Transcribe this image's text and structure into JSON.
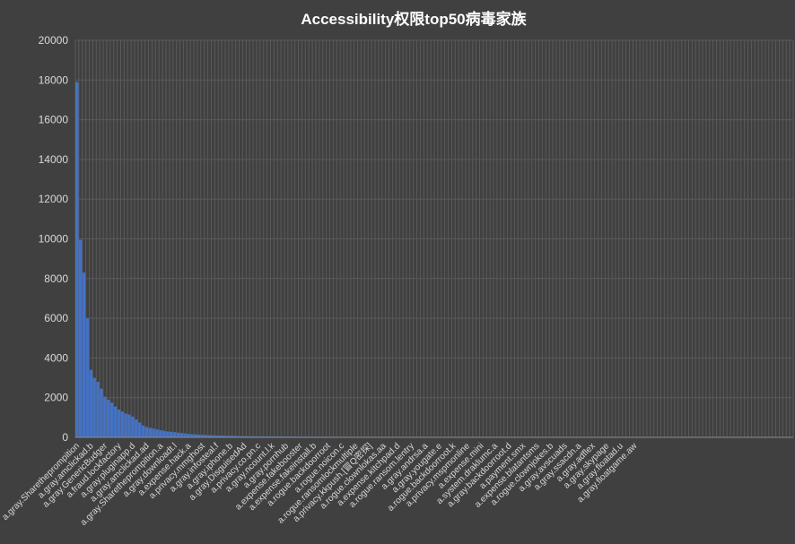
{
  "chart_data": {
    "type": "bar",
    "title": "Accessibility权限top50病毒家族",
    "xlabel": "",
    "ylabel": "",
    "ylim": [
      0,
      20000
    ],
    "yticks": [
      0,
      2000,
      4000,
      6000,
      8000,
      10000,
      12000,
      14000,
      16000,
      18000,
      20000
    ],
    "grid": true,
    "legend": "none",
    "bar_color": "#4472c4",
    "values": [
      17900,
      9950,
      8300,
      6000,
      3400,
      3000,
      2800,
      2450,
      2050,
      1900,
      1750,
      1550,
      1400,
      1300,
      1200,
      1150,
      1050,
      900,
      750,
      600,
      520,
      480,
      440,
      400,
      360,
      330,
      300,
      280,
      260,
      240,
      220,
      200,
      180,
      160,
      150,
      140,
      130,
      120,
      110,
      100,
      95,
      90,
      85,
      80,
      75,
      70,
      65,
      60,
      58,
      56,
      54,
      52,
      50,
      48,
      46,
      45,
      44,
      43,
      42,
      41,
      40,
      39,
      38,
      37,
      36,
      35,
      34,
      33,
      32,
      31,
      30,
      30,
      29,
      29,
      28,
      28,
      27,
      27,
      26,
      26,
      25,
      25,
      25,
      24,
      24,
      24,
      23,
      23,
      23,
      22,
      22,
      22,
      21,
      21,
      21,
      20,
      20,
      20,
      20,
      20,
      19,
      19,
      19,
      19,
      19,
      18,
      18,
      18,
      18,
      18,
      17,
      17,
      17,
      17,
      17,
      16,
      16,
      16,
      16,
      16,
      15,
      15,
      15,
      15,
      15,
      15,
      14,
      14,
      14,
      14,
      14,
      14,
      13,
      13,
      13,
      13,
      13,
      13,
      12,
      12,
      12,
      12,
      12,
      12,
      12,
      11,
      11,
      11,
      11,
      11,
      11,
      11,
      10,
      10,
      10,
      10,
      10,
      10,
      10,
      10,
      9,
      9,
      9,
      9,
      9,
      9,
      9,
      9,
      8,
      8,
      8,
      8,
      8,
      8,
      8,
      8,
      8,
      7,
      7,
      7,
      7,
      7,
      7,
      7,
      7,
      7,
      6,
      6,
      6,
      6,
      6,
      6,
      6,
      6,
      6,
      6,
      5,
      5,
      5,
      5,
      5,
      5,
      5,
      5,
      5,
      5
    ],
    "tick_labels": [
      {
        "i": 0,
        "label": "a.gray.Sharetheprompition"
      },
      {
        "i": 4,
        "label": "a.gray.amclickad.b"
      },
      {
        "i": 8,
        "label": "a.gray.GenericBudger"
      },
      {
        "i": 12,
        "label": "a.fraud.lockfactory"
      },
      {
        "i": 16,
        "label": "a.gray.pluginapp.d"
      },
      {
        "i": 20,
        "label": "a.gray.amclickad.ad"
      },
      {
        "i": 24,
        "label": "a.gray.Sharetheprompition.a"
      },
      {
        "i": 28,
        "label": "a.gray.downloadt.l"
      },
      {
        "i": 32,
        "label": "a.expense.hack.a"
      },
      {
        "i": 36,
        "label": "a.privacy.mmghost"
      },
      {
        "i": 40,
        "label": "a.gray.infosteal.f"
      },
      {
        "i": 44,
        "label": "a.gray.iphone.b"
      },
      {
        "i": 48,
        "label": "a.gray.DisguisedAd"
      },
      {
        "i": 52,
        "label": "a.privacy.co.pn.c"
      },
      {
        "i": 56,
        "label": "a.gray.ncount.l.k"
      },
      {
        "i": 60,
        "label": "a.gray.pornhub"
      },
      {
        "i": 64,
        "label": "a.expense.fakebooster"
      },
      {
        "i": 68,
        "label": "a.expense.fakeinstall.b"
      },
      {
        "i": 72,
        "label": "a.rogue.backdoorroot"
      },
      {
        "i": 76,
        "label": "a.rogue.noicon.c"
      },
      {
        "i": 80,
        "label": "a.rogue.ransomlockmultiple"
      },
      {
        "i": 84,
        "label": "a.privacy.kkpush.[冒Q密探]"
      },
      {
        "i": 88,
        "label": "a.rogue.clownlokas.aa"
      },
      {
        "i": 92,
        "label": "a.expense.kitchpad.d"
      },
      {
        "i": 96,
        "label": "a.rogue.ransom.lentry"
      },
      {
        "i": 100,
        "label": "a.gray.andrsa.a"
      },
      {
        "i": 104,
        "label": "a.gray.yougate.e"
      },
      {
        "i": 108,
        "label": "a.rogue.backdoorroot.k"
      },
      {
        "i": 112,
        "label": "a.privacy.mspmonline"
      },
      {
        "i": 116,
        "label": "a.expense.mini"
      },
      {
        "i": 120,
        "label": "a.system.draklumc.a"
      },
      {
        "i": 124,
        "label": "a.gray.backdoorroot.d"
      },
      {
        "i": 128,
        "label": "a.payment.smx"
      },
      {
        "i": 132,
        "label": "a.expense.blatantsms"
      },
      {
        "i": 136,
        "label": "a.rogue.clownjokes.b"
      },
      {
        "i": 140,
        "label": "a.gray.avscuads"
      },
      {
        "i": 144,
        "label": "a.gray.ssacdn.a"
      },
      {
        "i": 148,
        "label": "a.gray.adflex"
      },
      {
        "i": 152,
        "label": "a.gray.skypage"
      },
      {
        "i": 156,
        "label": "a.gray.floatad.u"
      },
      {
        "i": 160,
        "label": "a.gray.floatgame.aw"
      }
    ]
  }
}
